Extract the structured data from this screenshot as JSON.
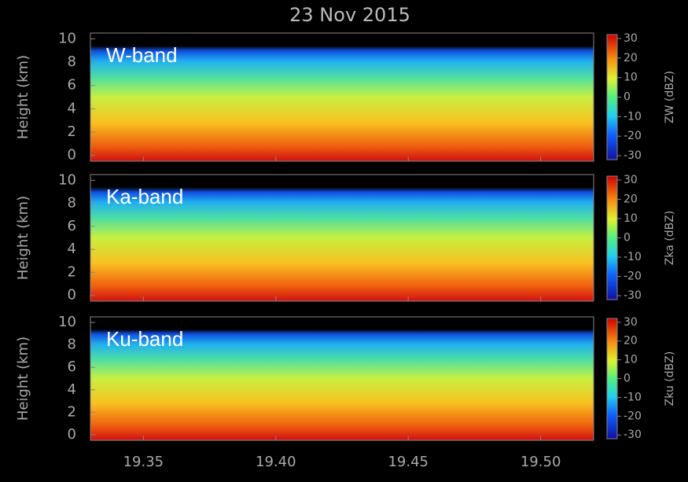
{
  "title": "23 Nov 2015",
  "chart_data": [
    {
      "type": "heatmap",
      "annotation": "W-band",
      "ylabel": "Height (km)",
      "ylim": [
        -0.5,
        10.5
      ],
      "yticks": [
        0,
        2,
        4,
        6,
        8,
        10
      ],
      "xlim": [
        19.33,
        19.52
      ],
      "colorbar": {
        "label": "ZW (dBZ)",
        "lim": [
          -32,
          32
        ],
        "ticks": [
          -30,
          -20,
          -10,
          0,
          10,
          20,
          30
        ]
      }
    },
    {
      "type": "heatmap",
      "annotation": "Ka-band",
      "ylabel": "Height (km)",
      "ylim": [
        -0.5,
        10.5
      ],
      "yticks": [
        0,
        2,
        4,
        6,
        8,
        10
      ],
      "xlim": [
        19.33,
        19.52
      ],
      "colorbar": {
        "label": "Zka (dBZ)",
        "lim": [
          -32,
          32
        ],
        "ticks": [
          -30,
          -20,
          -10,
          0,
          10,
          20,
          30
        ]
      }
    },
    {
      "type": "heatmap",
      "annotation": "Ku-band",
      "ylabel": "Height (km)",
      "ylim": [
        -0.5,
        10.5
      ],
      "yticks": [
        0,
        2,
        4,
        6,
        8,
        10
      ],
      "xlim": [
        19.33,
        19.52
      ],
      "xticks": [
        19.35,
        {
          "value": 19.4,
          "label": "19.40"
        },
        19.45,
        {
          "value": 19.5,
          "label": "19.50"
        }
      ],
      "colorbar": {
        "label": "Zku (dBZ)",
        "lim": [
          -32,
          32
        ],
        "ticks": [
          -30,
          -20,
          -10,
          0,
          10,
          20,
          30
        ]
      }
    }
  ]
}
